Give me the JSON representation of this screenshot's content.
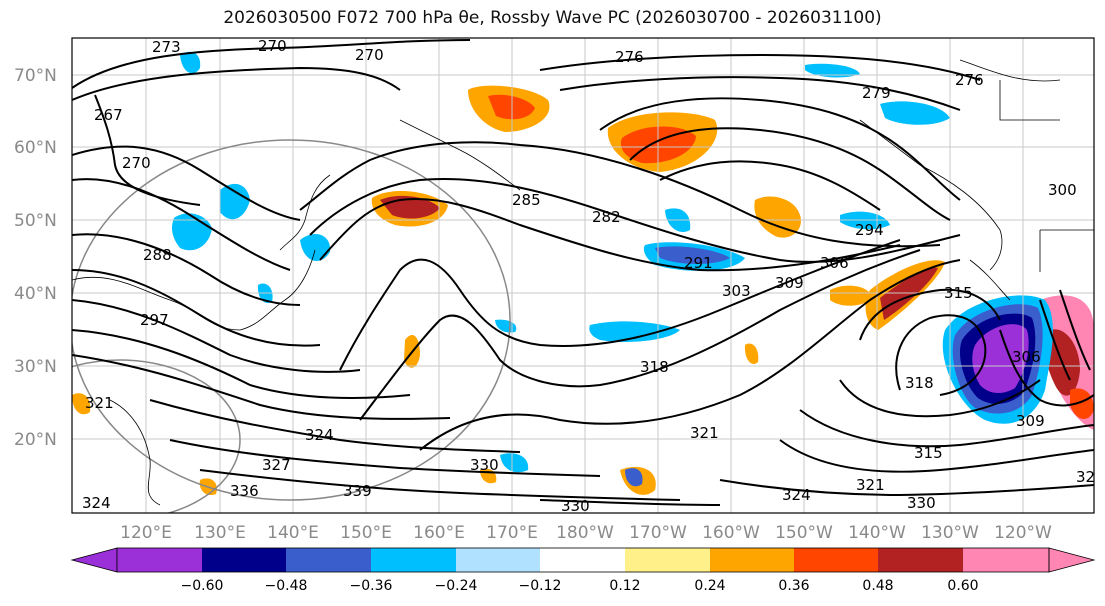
{
  "title": "2026030500 F072 700 hPa θe, Rossby Wave PC (2026030700 - 2026031100)",
  "map": {
    "lat_labels": [
      "70°N",
      "60°N",
      "50°N",
      "40°N",
      "30°N",
      "20°N"
    ],
    "lon_labels": [
      "120°E",
      "130°E",
      "140°E",
      "150°E",
      "160°E",
      "170°E",
      "180°W",
      "170°W",
      "160°W",
      "150°W",
      "140°W",
      "130°W",
      "120°W"
    ],
    "contour_labels": [
      "273",
      "270",
      "270",
      "276",
      "276",
      "279",
      "267",
      "270",
      "285",
      "282",
      "294",
      "300",
      "288",
      "291",
      "303",
      "309",
      "306",
      "315",
      "297",
      "318",
      "318",
      "306",
      "321",
      "309",
      "321",
      "324",
      "327",
      "330",
      "315",
      "336",
      "339",
      "330",
      "321",
      "324",
      "324",
      "330",
      "32"
    ]
  },
  "colorbar": {
    "ticks": [
      "−0.60",
      "−0.48",
      "−0.36",
      "−0.24",
      "−0.12",
      "0.12",
      "0.24",
      "0.36",
      "0.48",
      "0.60"
    ],
    "colors": [
      "#9b30d9",
      "#00008b",
      "#3a5fcd",
      "#00bfff",
      "#b0e2ff",
      "#ffffff",
      "#fff08a",
      "#ffa500",
      "#ff4500",
      "#b22222",
      "#ff86b3",
      "#ff86b3"
    ]
  }
}
